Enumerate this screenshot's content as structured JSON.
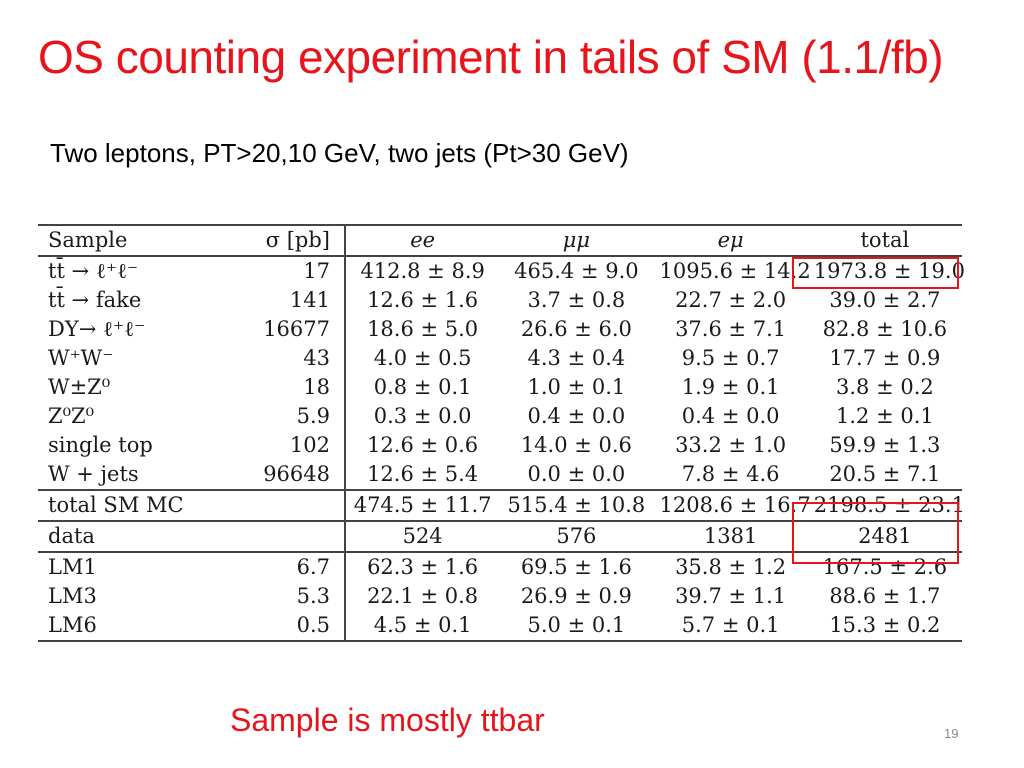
{
  "slide": {
    "title": "OS counting experiment in tails of SM (1.1/fb)",
    "subtitle": "Two leptons, PT>20,10 GeV, two jets (Pt>30 GeV)",
    "note": "Sample is mostly ttbar",
    "page_number": "19"
  },
  "table": {
    "headers": [
      "Sample",
      "σ [pb]",
      "ee",
      "μμ",
      "eμ",
      "total"
    ],
    "mc_rows": [
      {
        "sample": "tt̄ → ℓ⁺ℓ⁻",
        "sigma": "17",
        "ee": "412.8 ± 8.9",
        "mumu": "465.4 ± 9.0",
        "emu": "1095.6 ± 14.2",
        "total": "1973.8 ± 19.0"
      },
      {
        "sample": "tt̄ → fake",
        "sigma": "141",
        "ee": "12.6 ± 1.6",
        "mumu": "3.7 ± 0.8",
        "emu": "22.7 ± 2.0",
        "total": "39.0 ± 2.7"
      },
      {
        "sample": "DY→ ℓ⁺ℓ⁻",
        "sigma": "16677",
        "ee": "18.6 ± 5.0",
        "mumu": "26.6 ± 6.0",
        "emu": "37.6 ± 7.1",
        "total": "82.8 ± 10.6"
      },
      {
        "sample": "W⁺W⁻",
        "sigma": "43",
        "ee": "4.0 ± 0.5",
        "mumu": "4.3 ± 0.4",
        "emu": "9.5 ± 0.7",
        "total": "17.7 ± 0.9"
      },
      {
        "sample": "W±Z⁰",
        "sigma": "18",
        "ee": "0.8 ± 0.1",
        "mumu": "1.0 ± 0.1",
        "emu": "1.9 ± 0.1",
        "total": "3.8 ± 0.2"
      },
      {
        "sample": "Z⁰Z⁰",
        "sigma": "5.9",
        "ee": "0.3 ± 0.0",
        "mumu": "0.4 ± 0.0",
        "emu": "0.4 ± 0.0",
        "total": "1.2 ± 0.1"
      },
      {
        "sample": "single top",
        "sigma": "102",
        "ee": "12.6 ± 0.6",
        "mumu": "14.0 ± 0.6",
        "emu": "33.2 ± 1.0",
        "total": "59.9 ± 1.3"
      },
      {
        "sample": "W + jets",
        "sigma": "96648",
        "ee": "12.6 ± 5.4",
        "mumu": "0.0 ± 0.0",
        "emu": "7.8 ± 4.6",
        "total": "20.5 ± 7.1"
      }
    ],
    "sm_total": {
      "sample": "total SM MC",
      "sigma": "",
      "ee": "474.5 ± 11.7",
      "mumu": "515.4 ± 10.8",
      "emu": "1208.6 ± 16.7",
      "total": "2198.5 ± 23.1"
    },
    "data": {
      "sample": "data",
      "sigma": "",
      "ee": "524",
      "mumu": "576",
      "emu": "1381",
      "total": "2481"
    },
    "signal_rows": [
      {
        "sample": "LM1",
        "sigma": "6.7",
        "ee": "62.3 ± 1.6",
        "mumu": "69.5 ± 1.6",
        "emu": "35.8 ± 1.2",
        "total": "167.5 ± 2.6"
      },
      {
        "sample": "LM3",
        "sigma": "5.3",
        "ee": "22.1 ± 0.8",
        "mumu": "26.9 ± 0.9",
        "emu": "39.7 ± 1.1",
        "total": "88.6 ± 1.7"
      },
      {
        "sample": "LM6",
        "sigma": "0.5",
        "ee": "4.5 ± 0.1",
        "mumu": "5.0 ± 0.1",
        "emu": "5.7 ± 0.1",
        "total": "15.3 ± 0.2"
      }
    ]
  },
  "colors": {
    "accent_red": "#e8141b",
    "rule": "#444444",
    "page_number": "#8a8a8a"
  }
}
